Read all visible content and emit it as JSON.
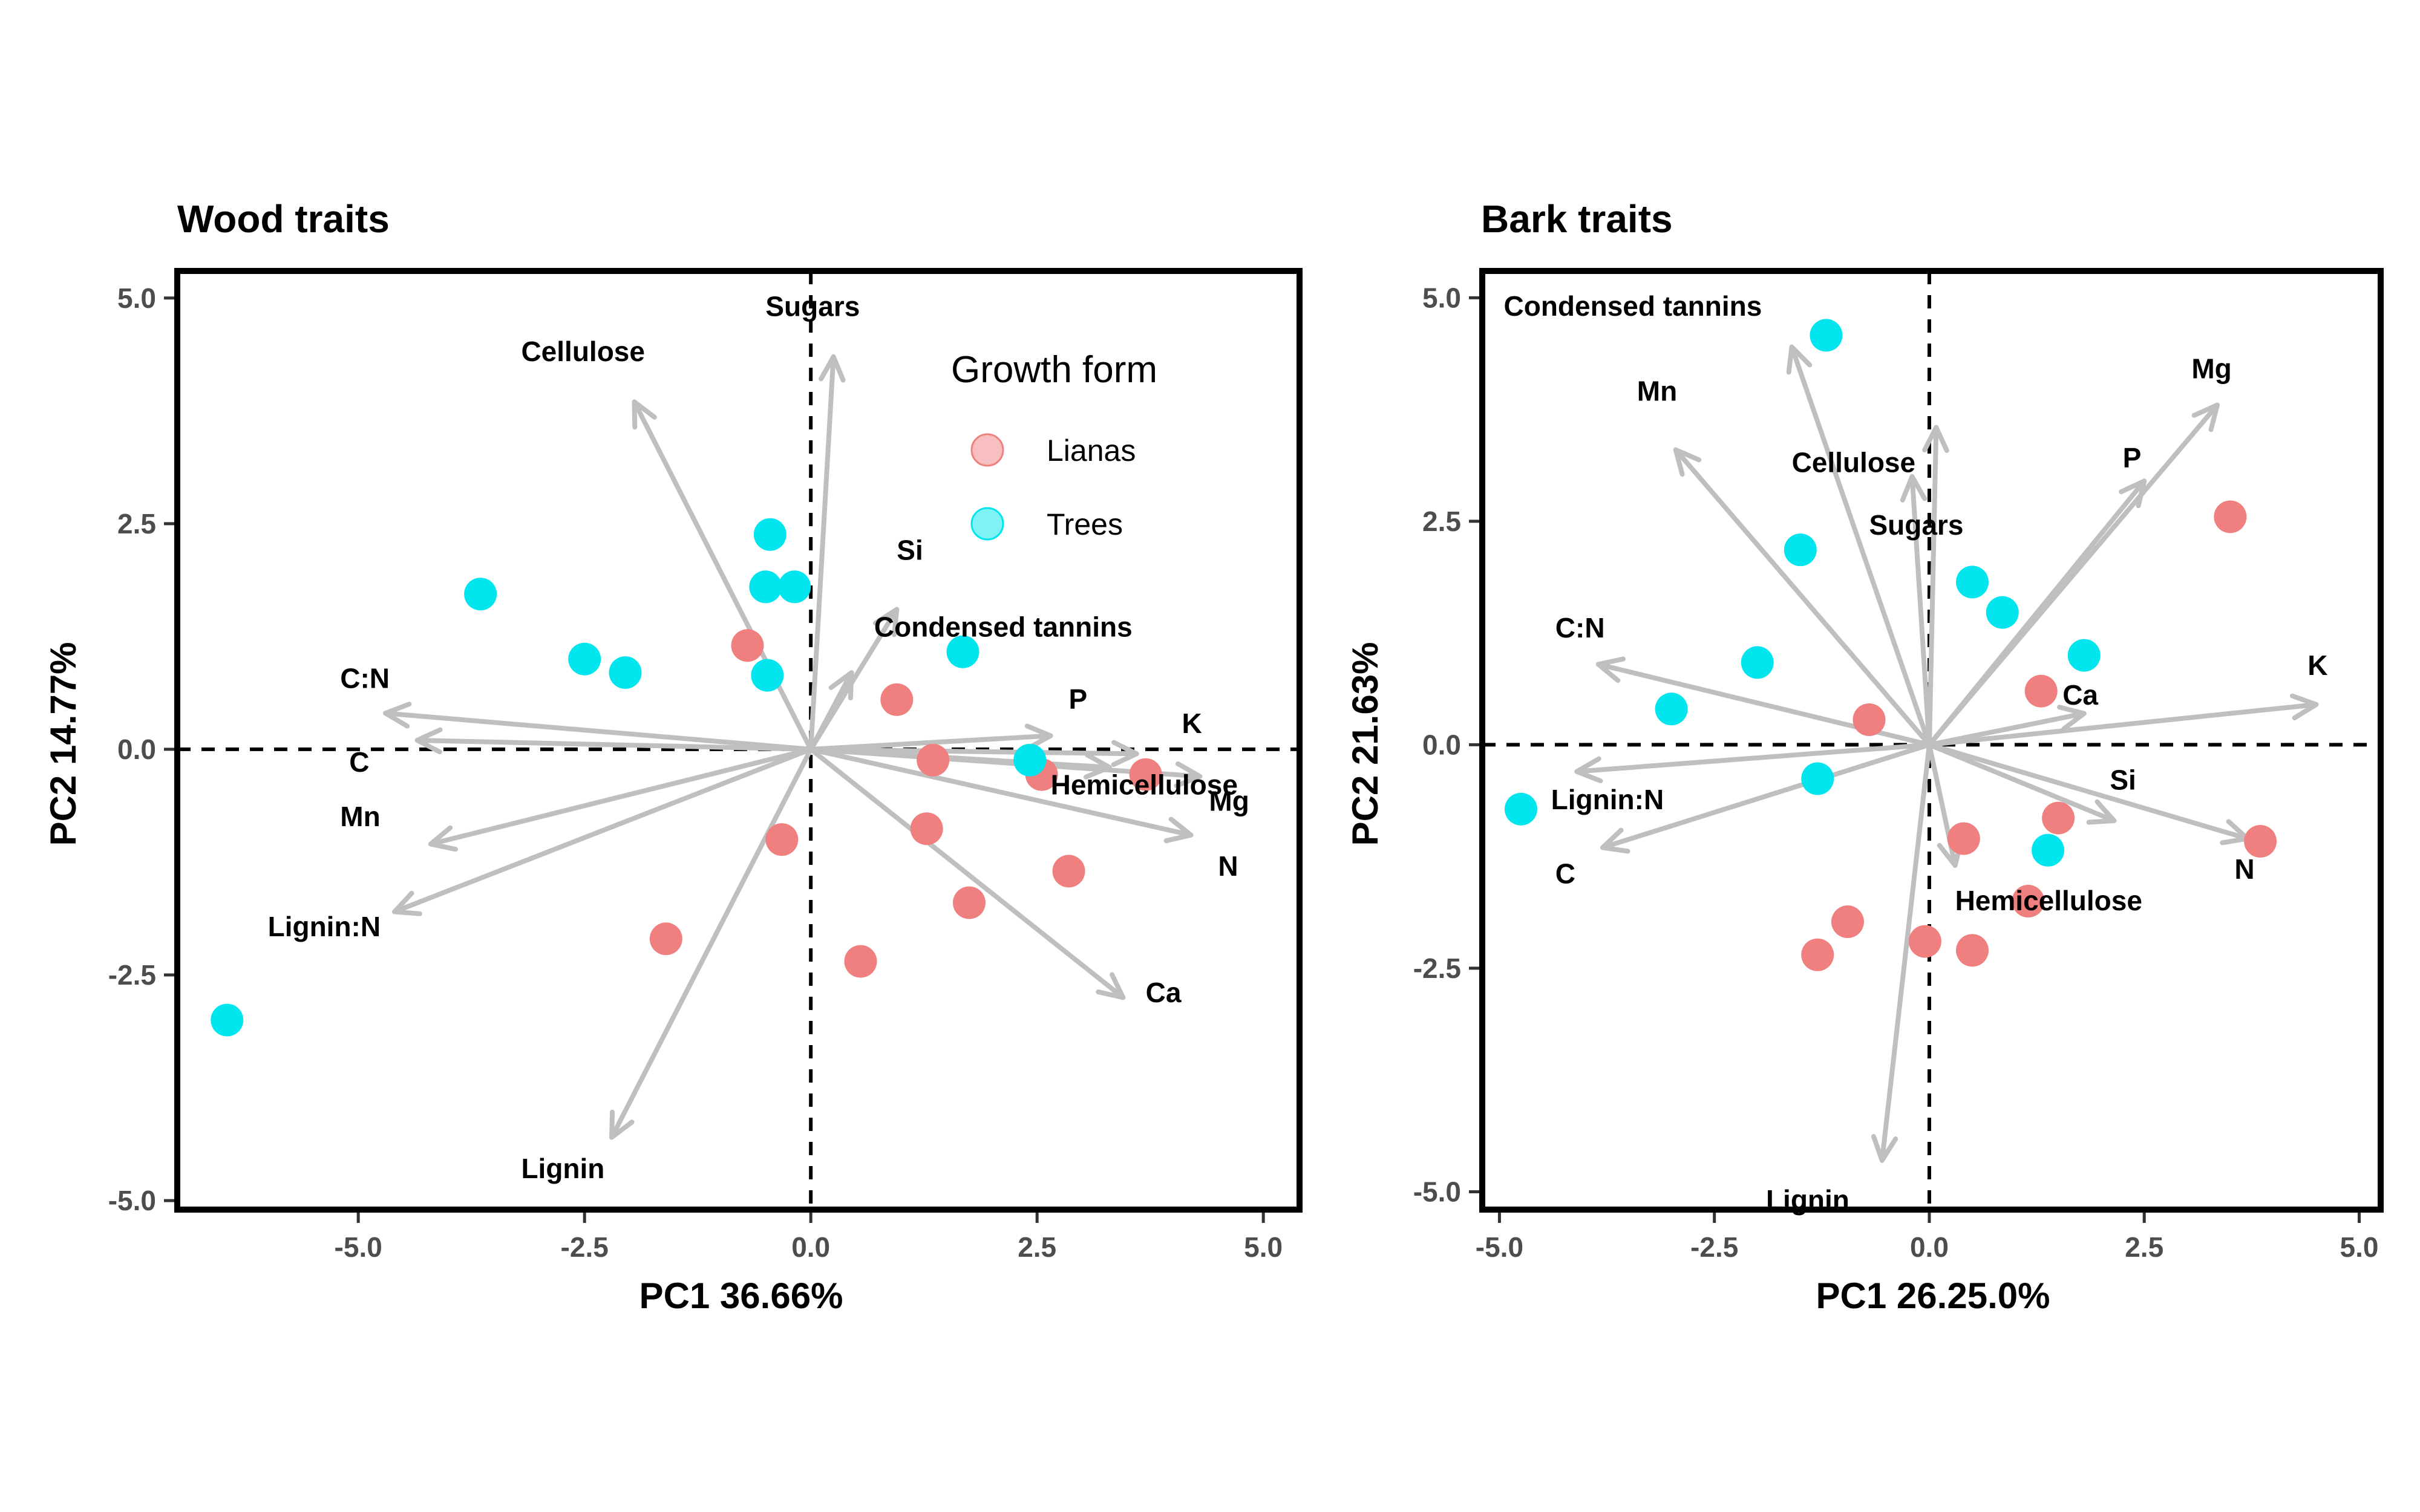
{
  "chart_data": [
    {
      "type": "scatter",
      "subtype": "pca-biplot",
      "title": "Wood traits",
      "xlabel": "PC1 36.66%",
      "ylabel": "PC2 14.77%",
      "xlim": [
        -7.0,
        5.4
      ],
      "ylim": [
        -5.1,
        5.3
      ],
      "xticks": [
        -5.0,
        -2.5,
        0.0,
        2.5,
        5.0
      ],
      "xtick_labels": [
        "-5.0",
        "-2.5",
        "0.0",
        "2.5",
        "5.0"
      ],
      "yticks": [
        -5.0,
        -2.5,
        0.0,
        2.5,
        5.0
      ],
      "ytick_labels": [
        "-5.0",
        "-2.5",
        "0.0",
        "2.5",
        "5.0"
      ],
      "reference_lines": "dashed at x=0 and y=0",
      "grid": false,
      "legend": {
        "title": "Growth form",
        "placement": "top-right",
        "entries": [
          {
            "name": "Lianas",
            "color": "#f08080"
          },
          {
            "name": "Trees",
            "color": "#00e5ee"
          }
        ]
      },
      "series": [
        {
          "name": "Lianas",
          "color": "#f08080",
          "points": [
            {
              "x": -0.7,
              "y": 1.15
            },
            {
              "x": 0.95,
              "y": 0.55
            },
            {
              "x": 1.35,
              "y": -0.12
            },
            {
              "x": 2.55,
              "y": -0.28
            },
            {
              "x": 3.7,
              "y": -0.28
            },
            {
              "x": -0.32,
              "y": -1.0
            },
            {
              "x": 1.28,
              "y": -0.88
            },
            {
              "x": 2.85,
              "y": -1.35
            },
            {
              "x": 1.75,
              "y": -1.7
            },
            {
              "x": -1.6,
              "y": -2.1
            },
            {
              "x": 0.55,
              "y": -2.35
            }
          ]
        },
        {
          "name": "Trees",
          "color": "#00e5ee",
          "points": [
            {
              "x": -0.45,
              "y": 2.38
            },
            {
              "x": -0.5,
              "y": 1.8
            },
            {
              "x": -0.18,
              "y": 1.8
            },
            {
              "x": -3.65,
              "y": 1.72
            },
            {
              "x": -2.5,
              "y": 1.0
            },
            {
              "x": -2.05,
              "y": 0.85
            },
            {
              "x": -0.48,
              "y": 0.82
            },
            {
              "x": 1.68,
              "y": 1.08
            },
            {
              "x": 2.42,
              "y": -0.12
            },
            {
              "x": -6.45,
              "y": -3.0
            }
          ]
        }
      ],
      "loadings": [
        {
          "label": "Sugars",
          "x": 0.25,
          "y": 4.35,
          "lx": -0.5,
          "ly": 4.8
        },
        {
          "label": "Cellulose",
          "x": -1.95,
          "y": 3.85,
          "lx": -3.2,
          "ly": 4.3
        },
        {
          "label": "Si",
          "x": 0.95,
          "y": 1.55,
          "lx": 0.95,
          "ly": 2.1
        },
        {
          "label": "Condensed tannins",
          "x": 0.45,
          "y": 0.85,
          "lx": 0.7,
          "ly": 1.25
        },
        {
          "label": "C:N",
          "x": -4.7,
          "y": 0.4,
          "lx": -5.2,
          "ly": 0.68
        },
        {
          "label": "C",
          "x": -4.35,
          "y": 0.1,
          "lx": -5.1,
          "ly": -0.25
        },
        {
          "label": "P",
          "x": 2.65,
          "y": 0.15,
          "lx": 2.85,
          "ly": 0.45
        },
        {
          "label": "K",
          "x": 4.3,
          "y": -0.3,
          "lx": 4.1,
          "ly": 0.18
        },
        {
          "label": "Hemicellulose",
          "x": 3.6,
          "y": -0.05,
          "lx": 2.65,
          "ly": -0.5
        },
        {
          "label": "Mg",
          "x": 4.2,
          "y": -0.95,
          "lx": 4.4,
          "ly": -0.68
        },
        {
          "label": "N",
          "x": 3.3,
          "y": -0.2,
          "lx": 4.5,
          "ly": -1.4
        },
        {
          "label": "Mn",
          "x": -4.2,
          "y": -1.05,
          "lx": -5.2,
          "ly": -0.85
        },
        {
          "label": "Lignin:N",
          "x": -4.6,
          "y": -1.8,
          "lx": -6.0,
          "ly": -2.07
        },
        {
          "label": "Ca",
          "x": 3.45,
          "y": -2.75,
          "lx": 3.7,
          "ly": -2.8
        },
        {
          "label": "Lignin",
          "x": -2.2,
          "y": -4.3,
          "lx": -3.2,
          "ly": -4.75
        }
      ]
    },
    {
      "type": "scatter",
      "subtype": "pca-biplot",
      "title": "Bark traits",
      "xlabel": "PC1 26.25.0%",
      "ylabel": "PC2 21.63%",
      "xlim": [
        -5.2,
        5.25
      ],
      "ylim": [
        -5.2,
        5.3
      ],
      "xticks": [
        -5.0,
        -2.5,
        0.0,
        2.5,
        5.0
      ],
      "xtick_labels": [
        "-5.0",
        "-2.5",
        "0.0",
        "2.5",
        "5.0"
      ],
      "yticks": [
        -5.0,
        -2.5,
        0.0,
        2.5,
        5.0
      ],
      "ytick_labels": [
        "-5.0",
        "-2.5",
        "0.0",
        "2.5",
        "5.0"
      ],
      "reference_lines": "dashed at x=0 and y=0",
      "grid": false,
      "series": [
        {
          "name": "Lianas",
          "color": "#f08080",
          "points": [
            {
              "x": 3.5,
              "y": 2.55
            },
            {
              "x": -0.7,
              "y": 0.28
            },
            {
              "x": 1.3,
              "y": 0.6
            },
            {
              "x": 3.85,
              "y": -1.08
            },
            {
              "x": 1.5,
              "y": -0.82
            },
            {
              "x": 0.4,
              "y": -1.05
            },
            {
              "x": 1.15,
              "y": -1.75
            },
            {
              "x": -0.95,
              "y": -1.98
            },
            {
              "x": -1.3,
              "y": -2.35
            },
            {
              "x": -0.05,
              "y": -2.2
            },
            {
              "x": 0.5,
              "y": -2.3
            }
          ]
        },
        {
          "name": "Trees",
          "color": "#00e5ee",
          "points": [
            {
              "x": -1.2,
              "y": 4.58
            },
            {
              "x": -1.5,
              "y": 2.18
            },
            {
              "x": 0.5,
              "y": 1.82
            },
            {
              "x": 0.85,
              "y": 1.48
            },
            {
              "x": 1.8,
              "y": 1.0
            },
            {
              "x": -2.0,
              "y": 0.92
            },
            {
              "x": -3.0,
              "y": 0.4
            },
            {
              "x": -1.3,
              "y": -0.38
            },
            {
              "x": -4.75,
              "y": -0.72
            },
            {
              "x": 1.38,
              "y": -1.18
            }
          ]
        }
      ],
      "loadings": [
        {
          "label": "Condensed tannins",
          "x": -1.6,
          "y": 4.45,
          "lx": -4.95,
          "ly": 4.8
        },
        {
          "label": "Mn",
          "x": -2.95,
          "y": 3.3,
          "lx": -3.4,
          "ly": 3.85
        },
        {
          "label": "Cellulose",
          "x": 0.08,
          "y": 3.55,
          "lx": -1.6,
          "ly": 3.05
        },
        {
          "label": "Sugars",
          "x": -0.2,
          "y": 3.0,
          "lx": -0.7,
          "ly": 2.35
        },
        {
          "label": "Mg",
          "x": 3.35,
          "y": 3.8,
          "lx": 3.05,
          "ly": 4.1
        },
        {
          "label": "P",
          "x": 2.5,
          "y": 2.95,
          "lx": 2.25,
          "ly": 3.1
        },
        {
          "label": "C:N",
          "x": -3.85,
          "y": 0.9,
          "lx": -4.35,
          "ly": 1.2
        },
        {
          "label": "Ca",
          "x": 1.8,
          "y": 0.35,
          "lx": 1.55,
          "ly": 0.45
        },
        {
          "label": "K",
          "x": 4.5,
          "y": 0.45,
          "lx": 4.4,
          "ly": 0.78
        },
        {
          "label": "Lignin:N",
          "x": -4.1,
          "y": -0.3,
          "lx": -4.4,
          "ly": -0.72
        },
        {
          "label": "C",
          "x": -3.8,
          "y": -1.15,
          "lx": -4.35,
          "ly": -1.55
        },
        {
          "label": "Si",
          "x": 2.15,
          "y": -0.85,
          "lx": 2.1,
          "ly": -0.5
        },
        {
          "label": "N",
          "x": 3.7,
          "y": -1.05,
          "lx": 3.55,
          "ly": -1.5
        },
        {
          "label": "Hemicellulose",
          "x": 0.3,
          "y": -1.35,
          "lx": 0.3,
          "ly": -1.85
        },
        {
          "label": "Lignin",
          "x": -0.55,
          "y": -4.65,
          "lx": -1.9,
          "ly": -5.2
        }
      ]
    }
  ]
}
